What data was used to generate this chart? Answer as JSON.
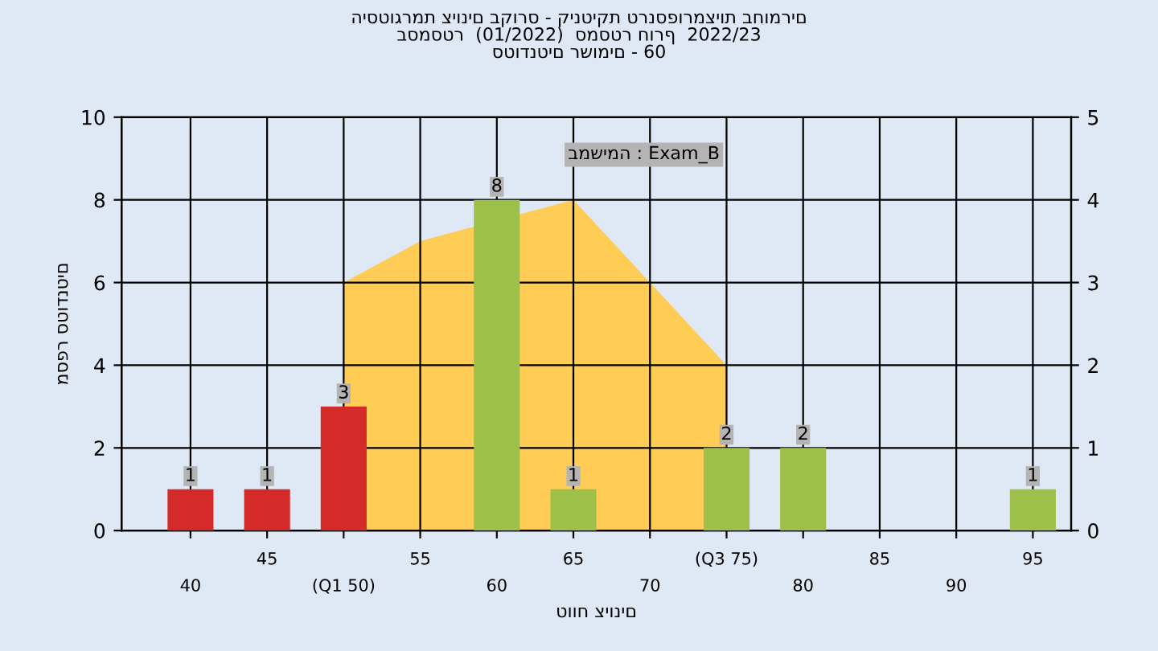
{
  "chart_data": {
    "type": "bar",
    "title": "היסטוגרמת ציונים בקורס - קינטיקת טרנספורמציות בחומרים\nבסמסטר  (01/2022)  סמסטר חורף  2022/23\nסטודנטים רשומים - 60",
    "xlabel": "טווח ציונים",
    "ylabel": "מספר סטודנטים",
    "annotations": [
      "במשימה : Exam_B"
    ],
    "categories": [
      "40",
      "45",
      "(Q1 50)",
      "55",
      "60",
      "65",
      "70",
      "(Q3 75)",
      "80",
      "85",
      "90",
      "95"
    ],
    "series": [
      {
        "type": "area",
        "axis": "y2",
        "color": "#ffcc55",
        "values": [
          null,
          null,
          3,
          3.5,
          null,
          4,
          3,
          2,
          null,
          null,
          null,
          null
        ]
      },
      {
        "colors": [
          "#d42a2a",
          "#d42a2a",
          "#d42a2a",
          "#9dc04a",
          "#9dc04a",
          "#9dc04a",
          "#9dc04a",
          "#9dc04a",
          "#9dc04a",
          "#9dc04a",
          "#9dc04a",
          "#9dc04a"
        ],
        "values": [
          1,
          1,
          3,
          0,
          8,
          1,
          0,
          2,
          2,
          0,
          0,
          1
        ],
        "value_labels": [
          "1",
          "1",
          "3",
          null,
          "8",
          "1",
          null,
          "2",
          "2",
          null,
          null,
          "1"
        ]
      }
    ],
    "ylim": [
      0,
      10
    ],
    "yticks": [
      0,
      2,
      4,
      6,
      8,
      10
    ],
    "y2lim": [
      0,
      5
    ],
    "y2ticks": [
      0,
      1,
      2,
      3,
      4,
      5
    ],
    "grid": true,
    "legend": false
  }
}
